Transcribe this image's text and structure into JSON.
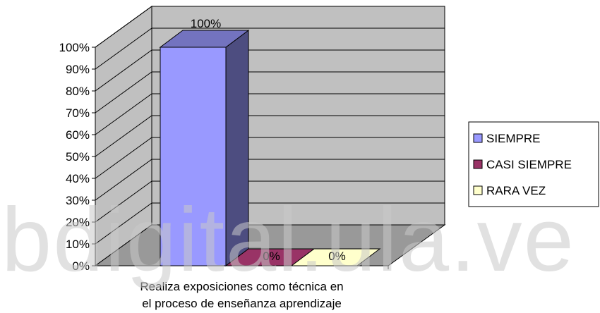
{
  "chart_data": {
    "type": "bar",
    "style": "3d-column",
    "categories": [
      "Realiza exposiciones como técnica en el proceso de enseñanza aprendizaje"
    ],
    "category_lines": [
      "Realiza exposiciones como técnica en",
      "el proceso de enseñanza aprendizaje"
    ],
    "series": [
      {
        "name": "SIEMPRE",
        "values": [
          100
        ],
        "label": "100%",
        "color": "#9999ff"
      },
      {
        "name": "CASI SIEMPRE",
        "values": [
          0
        ],
        "label": "0%",
        "color": "#993366"
      },
      {
        "name": "RARA VEZ",
        "values": [
          0
        ],
        "label": "0%",
        "color": "#ffffcc"
      }
    ],
    "ylim": [
      0,
      100
    ],
    "yticks": [
      "0%",
      "10%",
      "20%",
      "30%",
      "40%",
      "50%",
      "60%",
      "70%",
      "80%",
      "90%",
      "100%"
    ],
    "grid": true,
    "wall_color": "#c0c0c0",
    "legend_position": "right"
  },
  "watermark": "bdigital.ula.ve"
}
